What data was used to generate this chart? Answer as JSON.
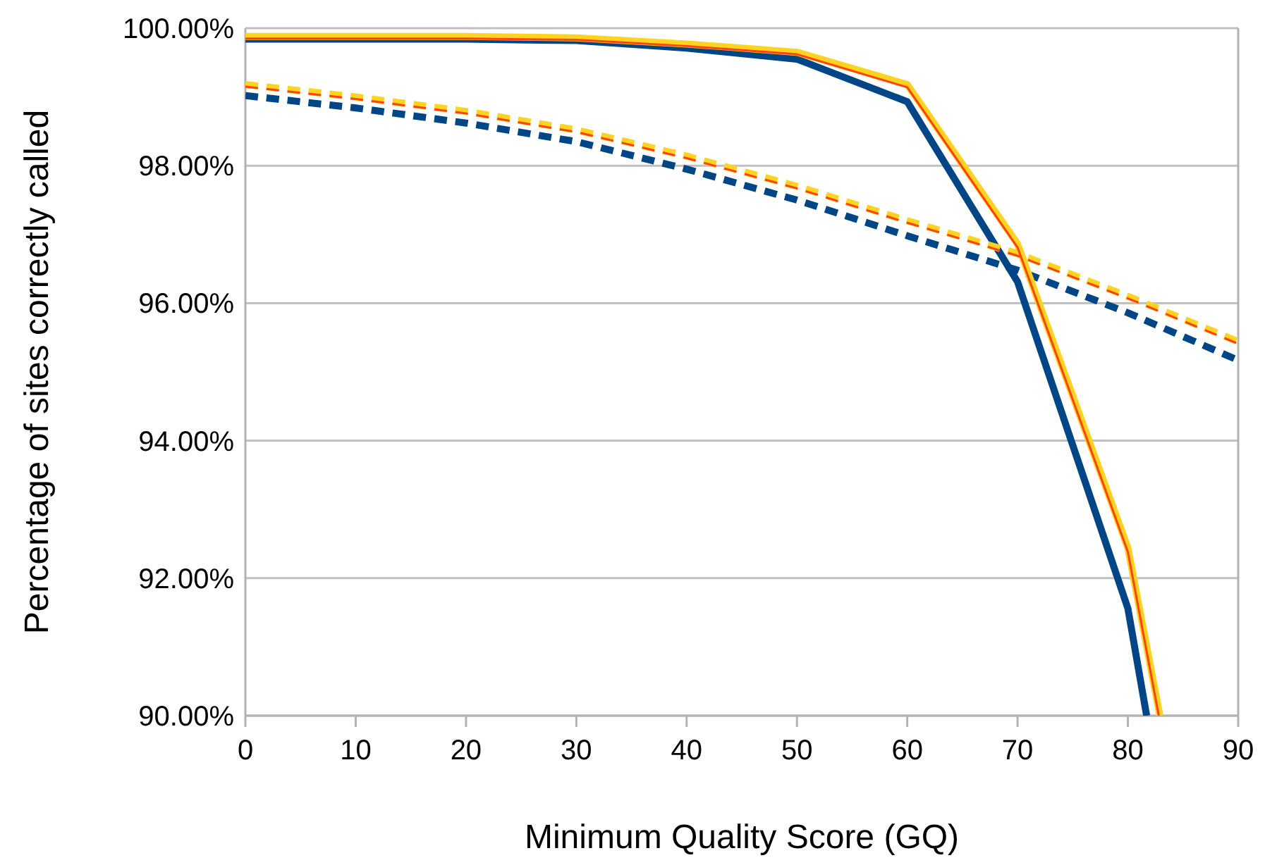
{
  "chart_data": {
    "type": "line",
    "xlabel": "Minimum Quality Score (GQ)",
    "ylabel": "Percentage of sites correctly called",
    "xlim": [
      0,
      90
    ],
    "xticks": [
      0,
      10,
      20,
      30,
      40,
      50,
      60,
      70,
      80,
      90
    ],
    "ylim": [
      90,
      100
    ],
    "yticks": [
      {
        "value": 90,
        "label": "90.00%"
      },
      {
        "value": 92,
        "label": "92.00%"
      },
      {
        "value": 94,
        "label": "94.00%"
      },
      {
        "value": 96,
        "label": "96.00%"
      },
      {
        "value": 98,
        "label": "98.00%"
      },
      {
        "value": 100,
        "label": "100.00%"
      }
    ],
    "grid": "y",
    "marker": "none",
    "series": [
      {
        "color": "#004586",
        "line_style": "solid",
        "x": [
          0,
          10,
          20,
          30,
          40,
          50,
          60,
          70,
          80,
          81.7
        ],
        "values": [
          99.84,
          99.84,
          99.84,
          99.82,
          99.71,
          99.55,
          98.93,
          96.31,
          91.56,
          90.0
        ]
      },
      {
        "color": "#004586",
        "line_style": "dashed",
        "x": [
          0,
          10,
          20,
          30,
          40,
          50,
          60,
          70,
          80,
          90
        ],
        "values": [
          99.02,
          98.84,
          98.62,
          98.35,
          97.95,
          97.5,
          96.98,
          96.48,
          95.86,
          95.17
        ]
      },
      {
        "color": "#ffd320",
        "line_style": "solid",
        "x": [
          0,
          10,
          20,
          30,
          40,
          50,
          60,
          70,
          80,
          82.9
        ],
        "values": [
          99.88,
          99.88,
          99.88,
          99.86,
          99.77,
          99.65,
          99.18,
          96.86,
          92.44,
          90.0
        ]
      },
      {
        "color": "#ffd320",
        "line_style": "dashed",
        "x": [
          0,
          10,
          20,
          30,
          40,
          50,
          60,
          70,
          80,
          90
        ],
        "values": [
          99.18,
          99.0,
          98.79,
          98.52,
          98.14,
          97.7,
          97.2,
          96.72,
          96.1,
          95.44
        ]
      },
      {
        "color": "#ff420e",
        "line_style": "solid",
        "x": [
          0,
          10,
          20,
          30,
          40,
          50,
          60,
          70,
          80,
          82.8
        ],
        "values": [
          99.85,
          99.85,
          99.85,
          99.83,
          99.74,
          99.62,
          99.14,
          96.81,
          92.38,
          90.0
        ]
      },
      {
        "color": "#ff420e",
        "line_style": "dashed",
        "x": [
          0,
          10,
          20,
          30,
          40,
          50,
          60,
          70,
          80,
          90
        ],
        "values": [
          99.15,
          98.97,
          98.76,
          98.49,
          98.11,
          97.67,
          97.17,
          96.69,
          96.07,
          95.41
        ]
      }
    ]
  }
}
